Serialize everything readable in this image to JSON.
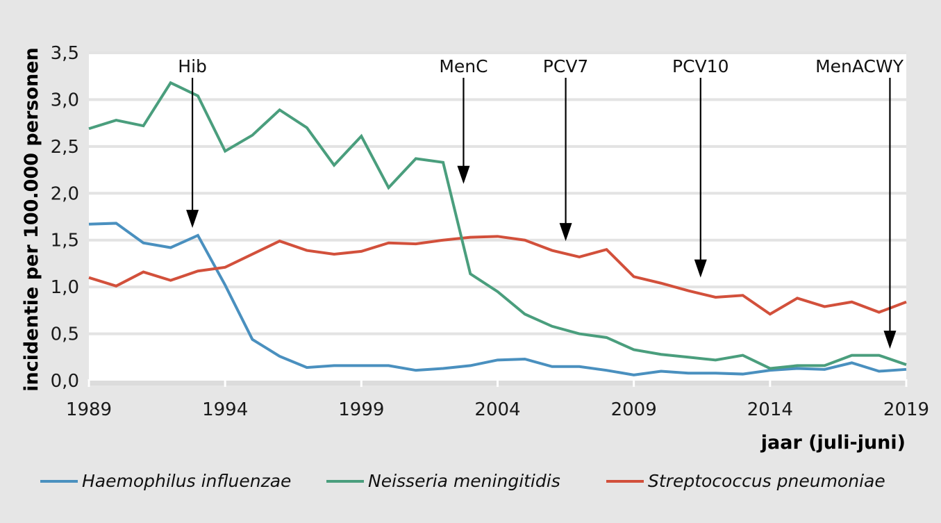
{
  "chart_data": {
    "type": "line",
    "title": "",
    "xlabel": "jaar (juli-juni)",
    "ylabel": "incidentie per 100.000 personen",
    "xlim": [
      1989,
      2019
    ],
    "ylim": [
      0,
      3.5
    ],
    "grid": true,
    "legend_position": "bottom",
    "x_ticks": [
      1989,
      1994,
      1999,
      2004,
      2009,
      2014,
      2019
    ],
    "x_tick_labels": [
      "1989",
      "1994",
      "1999",
      "2004",
      "2009",
      "2014",
      "2019"
    ],
    "y_ticks": [
      0,
      0.5,
      1.0,
      1.5,
      2.0,
      2.5,
      3.0,
      3.5
    ],
    "y_tick_labels": [
      "0,0",
      "0,5",
      "1,0",
      "1,5",
      "2,0",
      "2,5",
      "3,0",
      "3,5"
    ],
    "x": [
      1989,
      1990,
      1991,
      1992,
      1993,
      1994,
      1995,
      1996,
      1997,
      1998,
      1999,
      2000,
      2001,
      2002,
      2003,
      2004,
      2005,
      2006,
      2007,
      2008,
      2009,
      2010,
      2011,
      2012,
      2013,
      2014,
      2015,
      2016,
      2017,
      2018,
      2019
    ],
    "series": [
      {
        "name": "Haemophilus influenzae",
        "color": "#4a90bf",
        "values": [
          1.67,
          1.68,
          1.47,
          1.42,
          1.55,
          1.02,
          0.44,
          0.26,
          0.14,
          0.16,
          0.16,
          0.16,
          0.11,
          0.13,
          0.16,
          0.22,
          0.23,
          0.15,
          0.15,
          0.11,
          0.06,
          0.1,
          0.08,
          0.08,
          0.07,
          0.11,
          0.13,
          0.12,
          0.19,
          0.1,
          0.12
        ]
      },
      {
        "name": "Neisseria meningitidis",
        "color": "#4a9e7d",
        "values": [
          2.69,
          2.78,
          2.72,
          3.18,
          3.04,
          2.45,
          2.62,
          2.89,
          2.7,
          2.3,
          2.61,
          2.06,
          2.37,
          2.33,
          1.14,
          0.95,
          0.71,
          0.58,
          0.5,
          0.46,
          0.33,
          0.28,
          0.25,
          0.22,
          0.27,
          0.13,
          0.16,
          0.16,
          0.27,
          0.27,
          0.17
        ]
      },
      {
        "name": "Streptococcus pneumoniae",
        "color": "#d2503b",
        "values": [
          1.1,
          1.01,
          1.16,
          1.07,
          1.17,
          1.21,
          1.35,
          1.49,
          1.39,
          1.35,
          1.38,
          1.47,
          1.46,
          1.5,
          1.53,
          1.54,
          1.5,
          1.39,
          1.32,
          1.4,
          1.11,
          1.04,
          0.96,
          0.89,
          0.91,
          0.71,
          0.88,
          0.79,
          0.84,
          0.73,
          0.84
        ]
      }
    ],
    "annotations": [
      {
        "label": "Hib",
        "x": 1992.8,
        "y_tip": 1.63
      },
      {
        "label": "MenC",
        "x": 2002.75,
        "y_tip": 2.1
      },
      {
        "label": "PCV7",
        "x": 2006.5,
        "y_tip": 1.49
      },
      {
        "label": "PCV10",
        "x": 2011.45,
        "y_tip": 1.1
      },
      {
        "label": "MenACWY",
        "x": 2018.4,
        "y_tip": 0.34
      }
    ]
  }
}
